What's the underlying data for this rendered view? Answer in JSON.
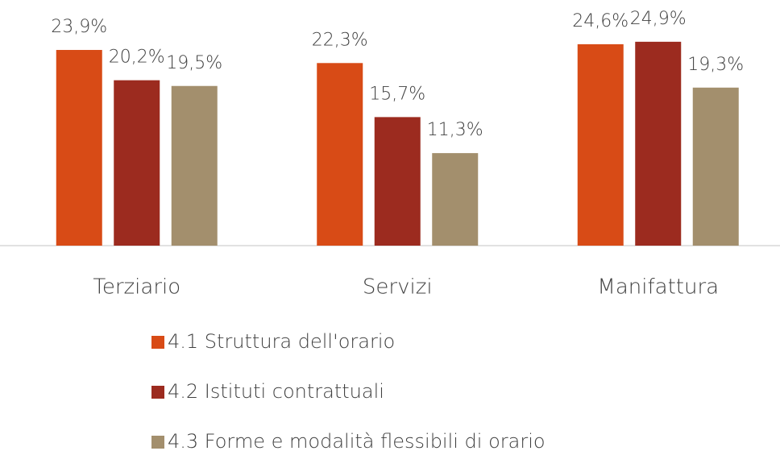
{
  "chart_data": {
    "type": "bar",
    "categories": [
      "Terziario",
      "Servizi",
      "Manifattura"
    ],
    "series": [
      {
        "name": "4.1 Struttura dell'orario",
        "color": "#d84b16",
        "values": [
          23.9,
          22.3,
          24.6
        ],
        "value_labels": [
          "23,9%",
          "22,3%",
          "24,6%"
        ]
      },
      {
        "name": "4.2 Istituti contrattuali",
        "color": "#9c2b1f",
        "values": [
          20.2,
          15.7,
          24.9
        ],
        "value_labels": [
          "20,2%",
          "15,7%",
          "24,9%"
        ]
      },
      {
        "name": "4.3 Forme e modalità flessibili di orario",
        "color": "#a38f6d",
        "values": [
          19.5,
          11.3,
          19.3
        ],
        "value_labels": [
          "19,5%",
          "11,3%",
          "19,3%"
        ]
      }
    ],
    "ylim": [
      0,
      30
    ],
    "legend": "bottom"
  }
}
